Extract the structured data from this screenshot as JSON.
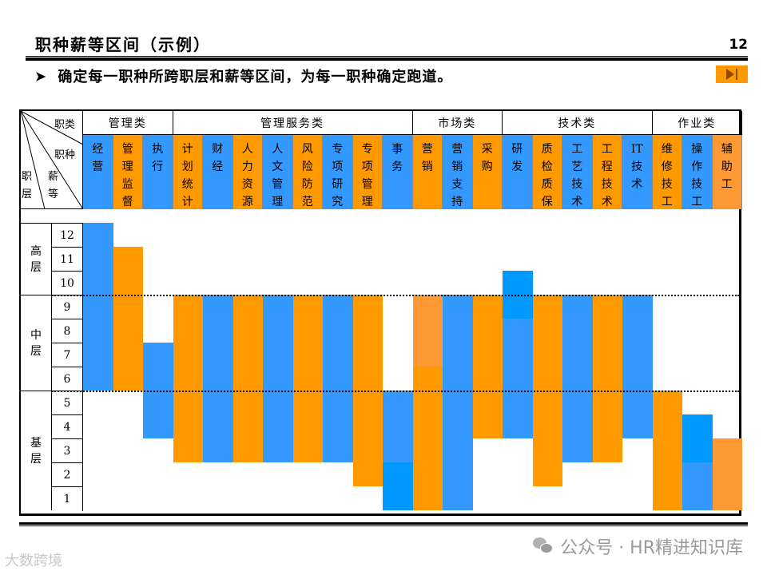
{
  "header": {
    "title": "职种薪等区间（示例）",
    "page_number": "12",
    "subtitle": "确定每一职种所跨职层和薪等区间，为每一职种确定跑道。",
    "bullet_icon": "arrow-bullet-icon",
    "next_button_icon": "skip-next-icon"
  },
  "table": {
    "corner_labels": {
      "category": "职类",
      "job_type": "职种",
      "level": "职层",
      "grade": "薪等"
    },
    "categories": [
      {
        "label": "管理类",
        "span": 3
      },
      {
        "label": "管理服务类",
        "span": 8
      },
      {
        "label": "市场类",
        "span": 3
      },
      {
        "label": "技术类",
        "span": 5
      },
      {
        "label": "作业类",
        "span": 3
      }
    ],
    "levels": [
      {
        "label": "高层",
        "grades": [
          12,
          11,
          10
        ]
      },
      {
        "label": "中层",
        "grades": [
          9,
          8,
          7,
          6
        ]
      },
      {
        "label": "基层",
        "grades": [
          5,
          4,
          3,
          2,
          1
        ]
      }
    ],
    "grades": [
      "12",
      "11",
      "10",
      "9",
      "8",
      "7",
      "6",
      "5",
      "4",
      "3",
      "2",
      "1"
    ]
  },
  "colors": {
    "blue": "#3399ff",
    "blue_bright": "#0099ff",
    "orange": "#ff9900",
    "orange_light": "#ff9933"
  },
  "chart_data": {
    "type": "range-bar",
    "title": "职种薪等区间（示例）",
    "xlabel": "职种",
    "ylabel": "薪等",
    "ylim": [
      1,
      12
    ],
    "level_bands": [
      {
        "label": "高层",
        "from": 10,
        "to": 12
      },
      {
        "label": "中层",
        "from": 6,
        "to": 9
      },
      {
        "label": "基层",
        "from": 1,
        "to": 5
      }
    ],
    "jobs": [
      {
        "category": "管理类",
        "name": "经营",
        "color": "blue",
        "low": 6,
        "high": 12,
        "segments": [
          {
            "from": 6,
            "to": 12,
            "color": "#3399ff"
          }
        ]
      },
      {
        "category": "管理类",
        "name": "管理监督",
        "color": "orange",
        "low": 6,
        "high": 11,
        "segments": [
          {
            "from": 6,
            "to": 11,
            "color": "#ff9900"
          }
        ]
      },
      {
        "category": "管理类",
        "name": "执行",
        "color": "blue",
        "low": 4,
        "high": 7,
        "segments": [
          {
            "from": 4,
            "to": 7,
            "color": "#3399ff"
          }
        ]
      },
      {
        "category": "管理服务类",
        "name": "计划统计",
        "color": "orange",
        "low": 3,
        "high": 9,
        "segments": [
          {
            "from": 3,
            "to": 9,
            "color": "#ff9900"
          }
        ]
      },
      {
        "category": "管理服务类",
        "name": "财经",
        "color": "blue",
        "low": 3,
        "high": 9,
        "segments": [
          {
            "from": 3,
            "to": 9,
            "color": "#3399ff"
          }
        ]
      },
      {
        "category": "管理服务类",
        "name": "人力资源",
        "color": "orange",
        "low": 3,
        "high": 9,
        "segments": [
          {
            "from": 3,
            "to": 9,
            "color": "#ff9900"
          }
        ]
      },
      {
        "category": "管理服务类",
        "name": "人文管理",
        "color": "blue",
        "low": 3,
        "high": 9,
        "segments": [
          {
            "from": 3,
            "to": 9,
            "color": "#3399ff"
          }
        ]
      },
      {
        "category": "管理服务类",
        "name": "风险防范",
        "color": "orange",
        "low": 3,
        "high": 9,
        "segments": [
          {
            "from": 3,
            "to": 9,
            "color": "#ff9900"
          }
        ]
      },
      {
        "category": "管理服务类",
        "name": "专项研究",
        "color": "blue",
        "low": 3,
        "high": 9,
        "segments": [
          {
            "from": 3,
            "to": 9,
            "color": "#3399ff"
          }
        ]
      },
      {
        "category": "管理服务类",
        "name": "专项管理",
        "color": "orange",
        "low": 2,
        "high": 9,
        "segments": [
          {
            "from": 2,
            "to": 9,
            "color": "#ff9900"
          }
        ]
      },
      {
        "category": "管理服务类",
        "name": "事务",
        "color": "blue",
        "low": 1,
        "high": 5,
        "segments": [
          {
            "from": 1,
            "to": 3,
            "color": "#0099ff"
          },
          {
            "from": 3,
            "to": 5,
            "color": "#3399ff"
          }
        ]
      },
      {
        "category": "市场类",
        "name": "营销",
        "color": "orange",
        "low": 1,
        "high": 9,
        "segments": [
          {
            "from": 1,
            "to": 7,
            "color": "#ff9900"
          },
          {
            "from": 7,
            "to": 9,
            "color": "#ff9933"
          }
        ]
      },
      {
        "category": "市场类",
        "name": "营销支持",
        "color": "blue",
        "low": 1,
        "high": 9,
        "segments": [
          {
            "from": 1,
            "to": 9,
            "color": "#3399ff"
          }
        ]
      },
      {
        "category": "市场类",
        "name": "采购",
        "color": "orange",
        "low": 4,
        "high": 9,
        "segments": [
          {
            "from": 4,
            "to": 9,
            "color": "#ff9900"
          }
        ]
      },
      {
        "category": "技术类",
        "name": "研发",
        "color": "blue",
        "low": 4,
        "high": 10,
        "segments": [
          {
            "from": 4,
            "to": 9,
            "color": "#3399ff"
          },
          {
            "from": 9,
            "to": 10,
            "color": "#0099ff"
          }
        ]
      },
      {
        "category": "技术类",
        "name": "质检质保",
        "color": "orange",
        "low": 2,
        "high": 9,
        "segments": [
          {
            "from": 2,
            "to": 9,
            "color": "#ff9900"
          }
        ]
      },
      {
        "category": "技术类",
        "name": "工艺技术",
        "color": "blue",
        "low": 3,
        "high": 9,
        "segments": [
          {
            "from": 3,
            "to": 9,
            "color": "#3399ff"
          }
        ]
      },
      {
        "category": "技术类",
        "name": "工程技术",
        "color": "orange",
        "low": 3,
        "high": 9,
        "segments": [
          {
            "from": 3,
            "to": 9,
            "color": "#ff9900"
          }
        ]
      },
      {
        "category": "技术类",
        "name": "IT技术",
        "color": "blue",
        "low": 4,
        "high": 9,
        "segments": [
          {
            "from": 4,
            "to": 9,
            "color": "#3399ff"
          }
        ]
      },
      {
        "category": "作业类",
        "name": "维修技工",
        "color": "orange",
        "low": 1,
        "high": 5,
        "segments": [
          {
            "from": 1,
            "to": 5,
            "color": "#ff9900"
          }
        ]
      },
      {
        "category": "作业类",
        "name": "操作技工",
        "color": "blue",
        "low": 1,
        "high": 4,
        "segments": [
          {
            "from": 1,
            "to": 3,
            "color": "#3399ff"
          },
          {
            "from": 3,
            "to": 4,
            "color": "#0099ff"
          }
        ]
      },
      {
        "category": "作业类",
        "name": "辅助工",
        "color": "orange_light",
        "low": 1,
        "high": 3,
        "segments": [
          {
            "from": 1,
            "to": 3,
            "color": "#ff9933"
          }
        ]
      }
    ],
    "job_display_chars": [
      [
        "经",
        "营"
      ],
      [
        "管",
        "理",
        "监",
        "督"
      ],
      [
        "执",
        "行"
      ],
      [
        "计",
        "划",
        "统",
        "计"
      ],
      [
        "财",
        "经"
      ],
      [
        "人",
        "力",
        "资",
        "源"
      ],
      [
        "人",
        "文",
        "管",
        "理"
      ],
      [
        "风",
        "险",
        "防",
        "范"
      ],
      [
        "专",
        "项",
        "研",
        "究"
      ],
      [
        "专",
        "项",
        "管",
        "理"
      ],
      [
        "事",
        "务"
      ],
      [
        "营",
        "销"
      ],
      [
        "营",
        "销",
        "支",
        "持"
      ],
      [
        "采",
        "购"
      ],
      [
        "研",
        "发"
      ],
      [
        "质",
        "检",
        "质",
        "保"
      ],
      [
        "工",
        "艺",
        "技",
        "术"
      ],
      [
        "工",
        "程",
        "技",
        "术"
      ],
      [
        "IT",
        "技",
        "术"
      ],
      [
        "维",
        "修",
        "技",
        "工"
      ],
      [
        "操",
        "作",
        "技",
        "工"
      ],
      [
        "辅",
        "助",
        "工"
      ]
    ],
    "grid": true,
    "legend": "none"
  },
  "watermarks": {
    "right": "公众号 · HR精进知识库",
    "left": "大数跨境"
  }
}
